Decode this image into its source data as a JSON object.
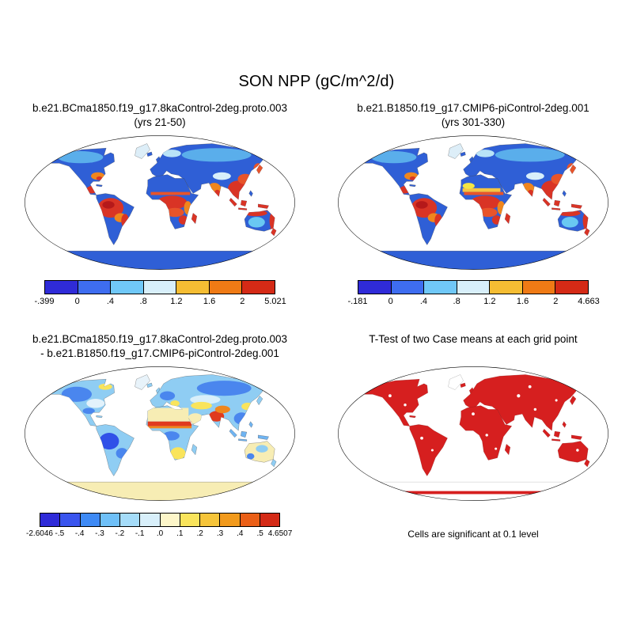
{
  "title": "SON NPP (gC/m^2/d)",
  "panels": {
    "top_left": {
      "title_line1": "b.e21.BCma1850.f19_g17.8kaControl-2deg.proto.003",
      "title_line2": "(yrs 21-50)",
      "colorbar": {
        "colors": [
          "#2f2bd8",
          "#3e6df0",
          "#70c8f8",
          "#d8effa",
          "#f5bd33",
          "#ef7a15",
          "#d42a16"
        ],
        "labels": [
          "-.399",
          "0",
          ".4",
          ".8",
          "1.2",
          "1.6",
          "2",
          "5.021"
        ]
      }
    },
    "top_right": {
      "title_line1": "b.e21.B1850.f19_g17.CMIP6-piControl-2deg.001",
      "title_line2": "(yrs 301-330)",
      "colorbar": {
        "colors": [
          "#2f2bd8",
          "#3e6df0",
          "#70c8f8",
          "#d8effa",
          "#f5bd33",
          "#ef7a15",
          "#d42a16"
        ],
        "labels": [
          "-.181",
          "0",
          ".4",
          ".8",
          "1.2",
          "1.6",
          "2",
          "4.663"
        ]
      }
    },
    "bottom_left": {
      "title_line1": "b.e21.BCma1850.f19_g17.8kaControl-2deg.proto.003",
      "title_line2": "- b.e21.B1850.f19_g17.CMIP6-piControl-2deg.001",
      "colorbar": {
        "colors": [
          "#2f2bd8",
          "#3a55ee",
          "#3e8af5",
          "#6fc0f8",
          "#a5dcf9",
          "#d8effa",
          "#fdf6c9",
          "#f9e45c",
          "#f6c53a",
          "#f29a1c",
          "#ea5f17",
          "#d42a16"
        ],
        "labels": [
          "-2.6046",
          "-.5",
          "-.4",
          "-.3",
          "-.2",
          "-.1",
          ".0",
          ".1",
          ".2",
          ".3",
          ".4",
          ".5",
          "4.6507"
        ]
      }
    },
    "bottom_right": {
      "title_line1": "T-Test of two Case means at each grid point",
      "caption": "Cells are significant at 0.1 level"
    }
  },
  "chart_data": [
    {
      "type": "heatmap",
      "subtype": "global-map",
      "projection": "robinson",
      "season": "SON",
      "variable": "NPP",
      "units": "gC/m^2/d",
      "case": "b.e21.BCma1850.f19_g17.8kaControl-2deg.proto.003",
      "years": "yrs 21-50",
      "min": -0.399,
      "max": 5.021,
      "levels": [
        0,
        0.4,
        0.8,
        1.2,
        1.6,
        2
      ],
      "palette": [
        "#2f2bd8",
        "#3e6df0",
        "#70c8f8",
        "#d8effa",
        "#f5bd33",
        "#ef7a15",
        "#d42a16"
      ],
      "pattern": "low NPP (blue) over high latitudes and deserts; high NPP (orange/red) over Amazon, equatorial Africa, India, SE Asia, Indonesia, coastal Australia"
    },
    {
      "type": "heatmap",
      "subtype": "global-map",
      "projection": "robinson",
      "season": "SON",
      "variable": "NPP",
      "units": "gC/m^2/d",
      "case": "b.e21.B1850.f19_g17.CMIP6-piControl-2deg.001",
      "years": "yrs 301-330",
      "min": -0.181,
      "max": 4.663,
      "levels": [
        0,
        0.4,
        0.8,
        1.2,
        1.6,
        2
      ],
      "palette": [
        "#2f2bd8",
        "#3e6df0",
        "#70c8f8",
        "#d8effa",
        "#f5bd33",
        "#ef7a15",
        "#d42a16"
      ],
      "pattern": "similar to case 1 with yellow band in Sahel and high NPP in tropics"
    },
    {
      "type": "heatmap",
      "subtype": "global-map-difference",
      "projection": "robinson",
      "case": "b.e21.BCma1850.f19_g17.8kaControl-2deg.proto.003 - b.e21.B1850.f19_g17.CMIP6-piControl-2deg.001",
      "min": -2.6046,
      "max": 4.6507,
      "levels": [
        -0.5,
        -0.4,
        -0.3,
        -0.2,
        -0.1,
        0,
        0.1,
        0.2,
        0.3,
        0.4,
        0.5
      ],
      "palette": [
        "#2f2bd8",
        "#3a55ee",
        "#3e8af5",
        "#6fc0f8",
        "#a5dcf9",
        "#d8effa",
        "#fdf6c9",
        "#f9e45c",
        "#f6c53a",
        "#f29a1c",
        "#ea5f17",
        "#d42a16"
      ],
      "pattern": "mostly negative (blue) mid/high latitudes, strong positive (red) band across Sahel and NW India, pale yellow over deserts, Australia and Antarctica"
    },
    {
      "type": "map",
      "subtype": "significance",
      "projection": "robinson",
      "title": "T-Test of two Case means at each grid point",
      "note": "Cells are significant at 0.1 level",
      "significance_level": 0.1,
      "significant_color": "#d61f1f",
      "pattern": "nearly all land cells significant (red) except scattered gaps and Greenland"
    }
  ]
}
